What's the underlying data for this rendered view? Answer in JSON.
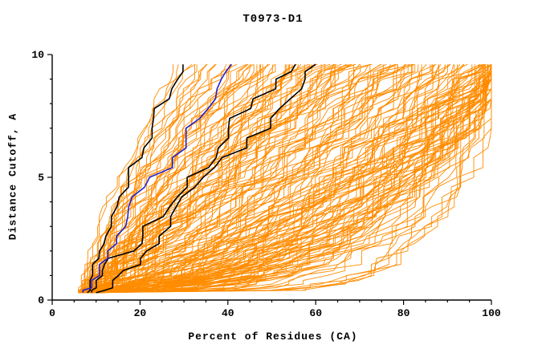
{
  "chart_data": {
    "type": "line",
    "title": "T0973-D1",
    "xlabel": "Percent of Residues (CA)",
    "ylabel": "Distance Cutoff, A",
    "xlim": [
      0,
      100
    ],
    "ylim": [
      0,
      10
    ],
    "x_major_ticks": [
      0,
      20,
      40,
      60,
      80,
      100
    ],
    "x_minor_step": 5,
    "y_major_ticks": [
      0,
      5,
      10
    ],
    "y_minor_step": 1,
    "grid": false,
    "legend": "none",
    "curve_y_start": 0.3,
    "curve_y_end": 9.6,
    "colors": {
      "model_lines": "#ff8c00",
      "highlight_lines": "#000000",
      "selected_line": "#2222cc",
      "axis": "#000000"
    },
    "curve_format": "[start_percent_at_low_cutoff, percent_at_cutoff_9.6, shape_exponent]",
    "highlight_curves": [
      {
        "name": "black-model-1",
        "color": "#000000",
        "params": [
          8,
          30,
          1.3
        ]
      },
      {
        "name": "black-model-2",
        "color": "#000000",
        "params": [
          9,
          54,
          1.05
        ]
      },
      {
        "name": "black-model-3",
        "color": "#000000",
        "params": [
          10,
          61,
          0.95
        ]
      },
      {
        "name": "blue-model",
        "color": "#2222cc",
        "params": [
          7,
          43,
          1.15
        ]
      }
    ],
    "model_curves": [
      [
        6,
        29,
        1.3
      ],
      [
        7,
        31,
        1.2
      ],
      [
        8,
        33,
        1.35
      ],
      [
        6,
        34,
        1.1
      ],
      [
        9,
        36,
        1.25
      ],
      [
        7,
        38,
        1.15
      ],
      [
        8,
        40,
        1.3
      ],
      [
        10,
        41,
        1.05
      ],
      [
        6,
        43,
        1.2
      ],
      [
        9,
        44,
        1.1
      ],
      [
        7,
        45,
        1.25
      ],
      [
        8,
        46,
        1.0
      ],
      [
        11,
        47,
        1.15
      ],
      [
        6,
        48,
        1.2
      ],
      [
        9,
        49,
        1.05
      ],
      [
        7,
        50,
        0.95
      ],
      [
        8,
        52,
        1.05
      ],
      [
        6,
        53,
        0.9
      ],
      [
        10,
        54,
        1.0
      ],
      [
        7,
        55,
        0.85
      ],
      [
        9,
        56,
        1.1
      ],
      [
        8,
        57,
        0.9
      ],
      [
        6,
        58,
        1.0
      ],
      [
        11,
        59,
        0.8
      ],
      [
        7,
        60,
        0.95
      ],
      [
        9,
        61,
        0.85
      ],
      [
        8,
        62,
        1.0
      ],
      [
        6,
        63,
        0.75
      ],
      [
        10,
        64,
        0.9
      ],
      [
        7,
        65,
        0.8
      ],
      [
        9,
        66,
        0.95
      ],
      [
        8,
        67,
        0.7
      ],
      [
        6,
        68,
        0.85
      ],
      [
        11,
        69,
        0.75
      ],
      [
        7,
        70,
        0.9
      ],
      [
        9,
        71,
        0.65
      ],
      [
        8,
        72,
        0.8
      ],
      [
        6,
        73,
        0.7
      ],
      [
        10,
        74,
        0.85
      ],
      [
        7,
        75,
        0.6
      ],
      [
        8,
        76,
        0.75
      ],
      [
        6,
        77,
        0.55
      ],
      [
        9,
        78,
        0.7
      ],
      [
        7,
        79,
        0.6
      ],
      [
        10,
        80,
        0.65
      ],
      [
        8,
        81,
        0.5
      ],
      [
        6,
        82,
        0.7
      ],
      [
        9,
        83,
        0.55
      ],
      [
        7,
        84,
        0.6
      ],
      [
        11,
        85,
        0.45
      ],
      [
        8,
        86,
        0.65
      ],
      [
        6,
        87,
        0.5
      ],
      [
        9,
        88,
        0.6
      ],
      [
        7,
        89,
        0.45
      ],
      [
        10,
        90,
        0.55
      ],
      [
        8,
        91,
        0.5
      ],
      [
        6,
        92,
        0.6
      ],
      [
        9,
        93,
        0.42
      ],
      [
        7,
        94,
        0.55
      ],
      [
        10,
        95,
        0.48
      ],
      [
        8,
        95,
        0.6
      ],
      [
        6,
        96,
        0.4
      ],
      [
        9,
        96,
        0.52
      ],
      [
        7,
        97,
        0.45
      ],
      [
        11,
        97,
        0.58
      ],
      [
        8,
        98,
        0.4
      ],
      [
        6,
        98,
        0.5
      ],
      [
        9,
        99,
        0.36
      ],
      [
        7,
        99,
        0.46
      ],
      [
        10,
        100,
        0.4
      ],
      [
        8,
        100,
        0.52
      ],
      [
        6,
        100,
        0.33
      ],
      [
        9,
        101,
        0.44
      ],
      [
        7,
        101,
        0.38
      ],
      [
        10,
        102,
        0.5
      ],
      [
        8,
        102,
        0.35
      ],
      [
        6,
        103,
        0.42
      ],
      [
        9,
        103,
        0.3
      ],
      [
        7,
        104,
        0.4
      ],
      [
        11,
        104,
        0.34
      ],
      [
        8,
        100,
        0.28
      ],
      [
        6,
        101,
        0.32
      ],
      [
        9,
        102,
        0.38
      ],
      [
        7,
        103,
        0.3
      ],
      [
        10,
        104,
        0.26
      ],
      [
        6,
        100,
        0.15
      ],
      [
        8,
        102,
        0.18
      ],
      [
        7,
        98,
        0.2
      ],
      [
        9,
        104,
        0.16
      ]
    ]
  }
}
